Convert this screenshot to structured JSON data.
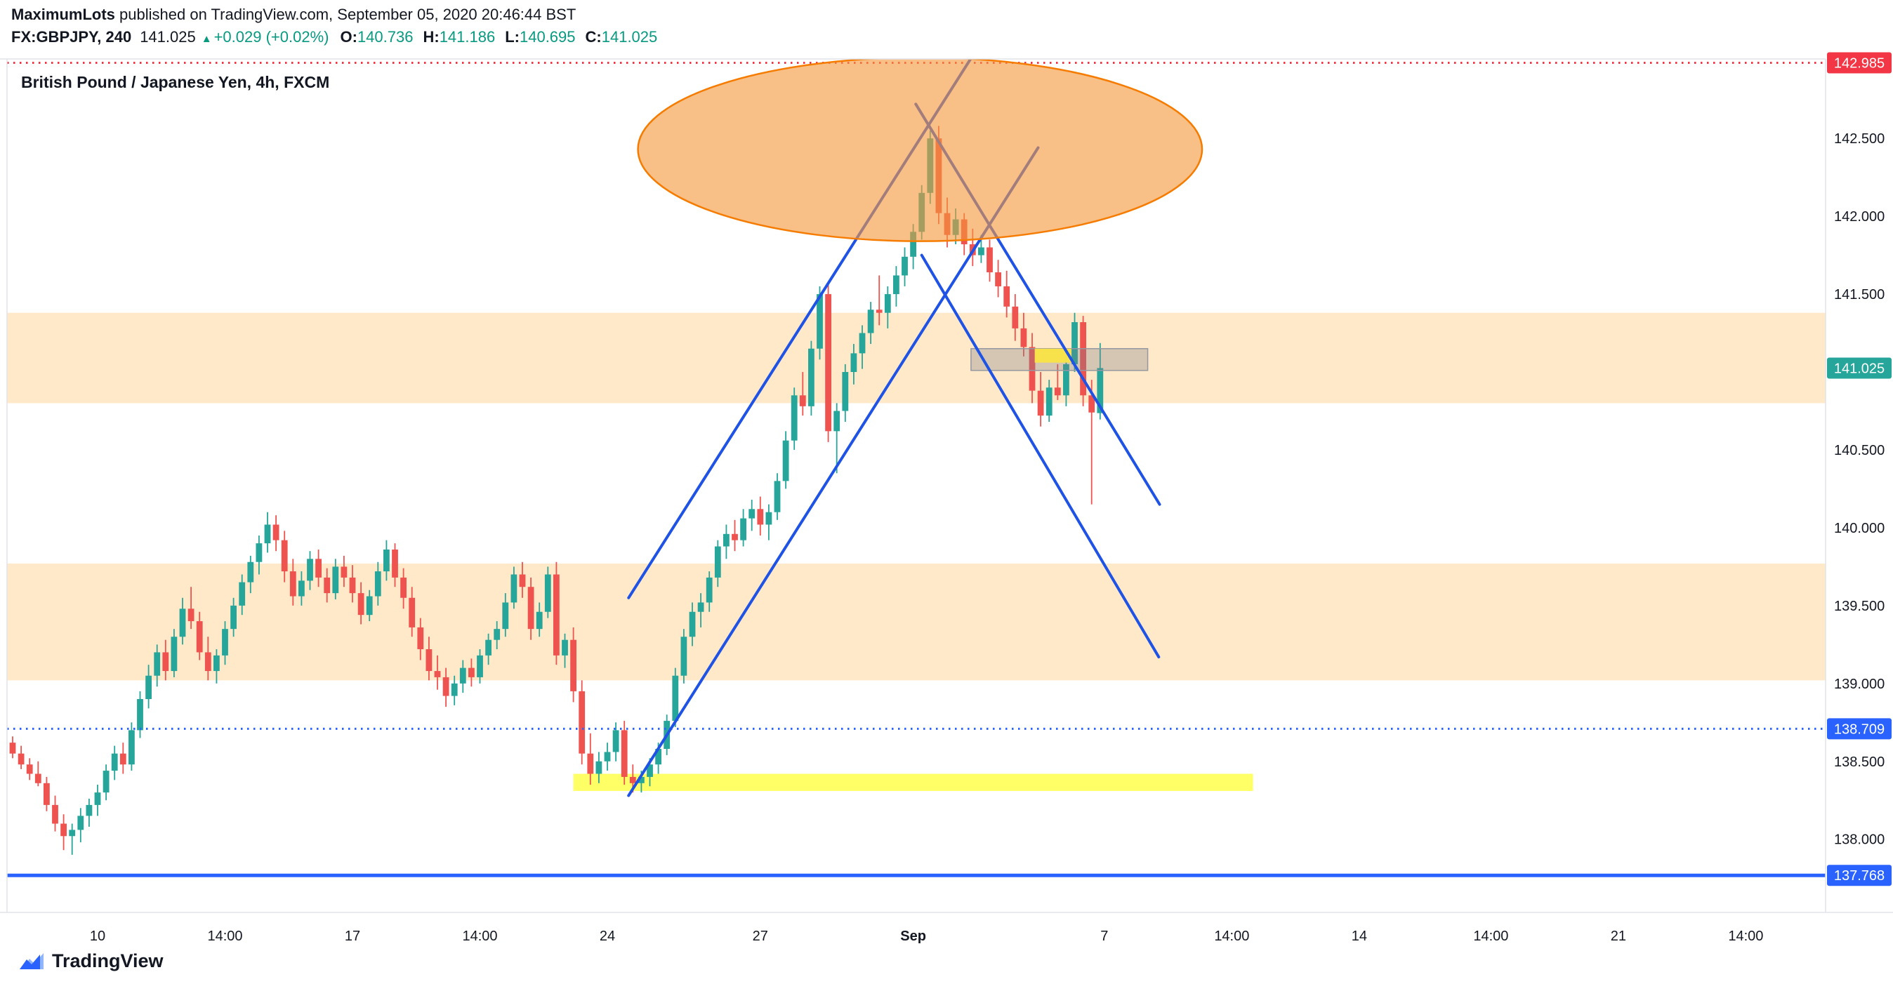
{
  "header": {
    "publisher": "MaximumLots",
    "published_text": " published on TradingView.com, September 05, 2020 20:46:44 BST"
  },
  "symbol_line": {
    "symbol": "FX:GBPJPY, 240",
    "price": "141.025",
    "direction_icon": "▲",
    "change": "+0.029 (+0.02%)",
    "ohlc": [
      {
        "label": "O:",
        "value": "140.736"
      },
      {
        "label": "H:",
        "value": "141.186"
      },
      {
        "label": "L:",
        "value": "140.695"
      },
      {
        "label": "C:",
        "value": "141.025"
      }
    ]
  },
  "chart_title": "British Pound / Japanese Yen, 4h, FXCM",
  "footer": {
    "brand": "TradingView"
  },
  "chart_data": {
    "type": "candlestick",
    "title": "British Pound / Japanese Yen, 4h, FXCM",
    "symbol": "FX:GBPJPY",
    "interval": "240",
    "exchange": "FXCM",
    "ylim": [
      137.53,
      143.01
    ],
    "colors": {
      "up": "#26a69a",
      "down": "#ef5350",
      "trendline": "#1e53e5",
      "band": "rgba(255,183,77,0.30)",
      "yellow_strip": "rgba(255,255,0,0.60)",
      "yellow_box": "rgba(250,228,70,0.95)",
      "gray_box_fill": "rgba(120,123,134,0.32)",
      "gray_box_stroke": "#9598a1",
      "ellipse_fill": "rgba(244,152,60,0.62)",
      "ellipse_stroke": "#f57c00",
      "axis_text": "#131722",
      "border": "#e0e3eb",
      "blue_level": "#2962ff",
      "red_level": "#f23645"
    },
    "price_ticks": [
      142.5,
      142.0,
      141.5,
      140.5,
      140.0,
      139.5,
      139.0,
      138.5,
      138.0
    ],
    "price_labels": [
      {
        "price": 142.985,
        "color": "#f23645"
      },
      {
        "price": 141.025,
        "color": "#26a69a"
      },
      {
        "price": 138.709,
        "color": "#2962ff"
      },
      {
        "price": 137.768,
        "color": "#2962ff"
      }
    ],
    "time_ticks": [
      {
        "label": "10",
        "i": 10
      },
      {
        "label": "14:00",
        "i": 25
      },
      {
        "label": "17",
        "i": 40
      },
      {
        "label": "14:00",
        "i": 55
      },
      {
        "label": "24",
        "i": 70
      },
      {
        "label": "27",
        "i": 88
      },
      {
        "label": "Sep",
        "i": 106,
        "bold": true
      },
      {
        "label": "7",
        "i": 128.5
      },
      {
        "label": "14:00",
        "i": 143.5
      },
      {
        "label": "14",
        "i": 158.5
      },
      {
        "label": "14:00",
        "i": 174
      },
      {
        "label": "21",
        "i": 189
      },
      {
        "label": "14:00",
        "i": 204
      }
    ],
    "annotations": {
      "bands": [
        {
          "p1": 141.38,
          "p2": 140.8
        },
        {
          "p1": 139.77,
          "p2": 139.02
        }
      ],
      "yellow_strip": {
        "i1": 66,
        "i2": 146,
        "p1": 138.42,
        "p2": 138.31
      },
      "gray_box": {
        "i1": 112.8,
        "i2": 133.6,
        "p1": 141.15,
        "p2": 141.01
      },
      "yellow_box": {
        "i1": 120.3,
        "i2": 124.6,
        "p1": 141.15,
        "p2": 141.06
      },
      "ellipse": {
        "i": 106.8,
        "p": 142.43,
        "ri": 33.2,
        "rp": 0.59
      },
      "trendlines": [
        {
          "i1": 72.5,
          "p1": 139.55,
          "i2": 113.1,
          "p2": 143.04
        },
        {
          "i1": 72.5,
          "p1": 138.28,
          "i2": 120.7,
          "p2": 142.44
        },
        {
          "i1": 106.3,
          "p1": 142.72,
          "i2": 135.0,
          "p2": 140.15
        },
        {
          "i1": 107.0,
          "p1": 141.75,
          "i2": 134.9,
          "p2": 139.17
        }
      ],
      "hlines": [
        {
          "price": 142.985,
          "style": "dotted",
          "color": "#f23645",
          "width": 3
        },
        {
          "price": 138.709,
          "style": "dotted",
          "color": "#2962ff",
          "width": 3
        },
        {
          "price": 137.768,
          "style": "solid",
          "color": "#2962ff",
          "width": 5
        }
      ]
    },
    "candles": [
      [
        138.62,
        138.66,
        138.52,
        138.55
      ],
      [
        138.55,
        138.6,
        138.45,
        138.48
      ],
      [
        138.48,
        138.52,
        138.38,
        138.42
      ],
      [
        138.42,
        138.5,
        138.34,
        138.36
      ],
      [
        138.36,
        138.4,
        138.18,
        138.22
      ],
      [
        138.22,
        138.28,
        138.05,
        138.1
      ],
      [
        138.1,
        138.16,
        137.93,
        138.02
      ],
      [
        138.02,
        138.1,
        137.9,
        138.06
      ],
      [
        138.06,
        138.2,
        137.98,
        138.15
      ],
      [
        138.15,
        138.26,
        138.08,
        138.22
      ],
      [
        138.22,
        138.35,
        138.15,
        138.3
      ],
      [
        138.3,
        138.48,
        138.25,
        138.44
      ],
      [
        138.44,
        138.6,
        138.38,
        138.55
      ],
      [
        138.55,
        138.62,
        138.42,
        138.48
      ],
      [
        138.48,
        138.75,
        138.44,
        138.7
      ],
      [
        138.7,
        138.95,
        138.65,
        138.9
      ],
      [
        138.9,
        139.12,
        138.84,
        139.05
      ],
      [
        139.05,
        139.25,
        138.98,
        139.2
      ],
      [
        139.2,
        139.28,
        139.02,
        139.08
      ],
      [
        139.08,
        139.35,
        139.04,
        139.3
      ],
      [
        139.3,
        139.55,
        139.25,
        139.48
      ],
      [
        139.48,
        139.62,
        139.35,
        139.4
      ],
      [
        139.4,
        139.46,
        139.15,
        139.2
      ],
      [
        139.2,
        139.3,
        139.02,
        139.08
      ],
      [
        139.08,
        139.22,
        139.0,
        139.18
      ],
      [
        139.18,
        139.4,
        139.12,
        139.35
      ],
      [
        139.35,
        139.55,
        139.3,
        139.5
      ],
      [
        139.5,
        139.7,
        139.44,
        139.65
      ],
      [
        139.65,
        139.82,
        139.58,
        139.78
      ],
      [
        139.78,
        139.95,
        139.7,
        139.9
      ],
      [
        139.9,
        140.1,
        139.84,
        140.02
      ],
      [
        140.02,
        140.08,
        139.85,
        139.92
      ],
      [
        139.92,
        139.98,
        139.65,
        139.72
      ],
      [
        139.72,
        139.8,
        139.5,
        139.56
      ],
      [
        139.56,
        139.72,
        139.5,
        139.66
      ],
      [
        139.66,
        139.85,
        139.6,
        139.8
      ],
      [
        139.8,
        139.86,
        139.62,
        139.68
      ],
      [
        139.68,
        139.74,
        139.52,
        139.58
      ],
      [
        139.58,
        139.8,
        139.54,
        139.75
      ],
      [
        139.75,
        139.82,
        139.62,
        139.68
      ],
      [
        139.68,
        139.76,
        139.52,
        139.58
      ],
      [
        139.58,
        139.65,
        139.38,
        139.44
      ],
      [
        139.44,
        139.6,
        139.4,
        139.56
      ],
      [
        139.56,
        139.78,
        139.5,
        139.72
      ],
      [
        139.72,
        139.92,
        139.66,
        139.86
      ],
      [
        139.86,
        139.9,
        139.62,
        139.68
      ],
      [
        139.68,
        139.74,
        139.48,
        139.55
      ],
      [
        139.55,
        139.62,
        139.3,
        139.36
      ],
      [
        139.36,
        139.42,
        139.15,
        139.22
      ],
      [
        139.22,
        139.3,
        139.02,
        139.08
      ],
      [
        139.08,
        139.18,
        138.96,
        139.04
      ],
      [
        139.04,
        139.1,
        138.85,
        138.92
      ],
      [
        138.92,
        139.05,
        138.86,
        139.0
      ],
      [
        139.0,
        139.15,
        138.94,
        139.1
      ],
      [
        139.1,
        139.16,
        138.98,
        139.04
      ],
      [
        139.04,
        139.22,
        139.0,
        139.18
      ],
      [
        139.18,
        139.32,
        139.12,
        139.28
      ],
      [
        139.28,
        139.4,
        139.22,
        139.35
      ],
      [
        139.35,
        139.58,
        139.3,
        139.52
      ],
      [
        139.52,
        139.75,
        139.48,
        139.7
      ],
      [
        139.7,
        139.78,
        139.55,
        139.62
      ],
      [
        139.62,
        139.68,
        139.28,
        139.35
      ],
      [
        139.35,
        139.52,
        139.3,
        139.46
      ],
      [
        139.46,
        139.75,
        139.42,
        139.7
      ],
      [
        139.7,
        139.78,
        139.12,
        139.18
      ],
      [
        139.18,
        139.32,
        139.1,
        139.28
      ],
      [
        139.28,
        139.36,
        138.88,
        138.95
      ],
      [
        138.95,
        139.02,
        138.48,
        138.55
      ],
      [
        138.55,
        138.68,
        138.35,
        138.42
      ],
      [
        138.42,
        138.56,
        138.36,
        138.5
      ],
      [
        138.5,
        138.62,
        138.44,
        138.56
      ],
      [
        138.56,
        138.75,
        138.5,
        138.7
      ],
      [
        138.7,
        138.76,
        138.35,
        138.4
      ],
      [
        138.4,
        138.48,
        138.3,
        138.36
      ],
      [
        138.36,
        138.44,
        138.3,
        138.4
      ],
      [
        138.4,
        138.52,
        138.34,
        138.48
      ],
      [
        138.48,
        138.62,
        138.42,
        138.58
      ],
      [
        138.58,
        138.8,
        138.54,
        138.76
      ],
      [
        138.76,
        139.1,
        138.72,
        139.05
      ],
      [
        139.05,
        139.35,
        139.0,
        139.3
      ],
      [
        139.3,
        139.52,
        139.24,
        139.46
      ],
      [
        139.46,
        139.58,
        139.36,
        139.52
      ],
      [
        139.52,
        139.72,
        139.46,
        139.68
      ],
      [
        139.68,
        139.92,
        139.62,
        139.88
      ],
      [
        139.88,
        140.02,
        139.8,
        139.96
      ],
      [
        139.96,
        140.05,
        139.85,
        139.92
      ],
      [
        139.92,
        140.12,
        139.88,
        140.06
      ],
      [
        140.06,
        140.18,
        139.98,
        140.12
      ],
      [
        140.12,
        140.2,
        139.95,
        140.02
      ],
      [
        140.02,
        140.15,
        139.92,
        140.1
      ],
      [
        140.1,
        140.35,
        140.05,
        140.3
      ],
      [
        140.3,
        140.62,
        140.25,
        140.56
      ],
      [
        140.56,
        140.9,
        140.5,
        140.85
      ],
      [
        140.85,
        141.0,
        140.72,
        140.78
      ],
      [
        140.78,
        141.2,
        140.72,
        141.15
      ],
      [
        141.15,
        141.55,
        141.08,
        141.5
      ],
      [
        141.5,
        141.56,
        140.55,
        140.62
      ],
      [
        140.62,
        140.8,
        140.35,
        140.75
      ],
      [
        140.75,
        141.05,
        140.68,
        141.0
      ],
      [
        141.0,
        141.18,
        140.92,
        141.12
      ],
      [
        141.12,
        141.3,
        141.02,
        141.25
      ],
      [
        141.25,
        141.45,
        141.18,
        141.4
      ],
      [
        141.4,
        141.62,
        141.3,
        141.38
      ],
      [
        141.38,
        141.55,
        141.28,
        141.5
      ],
      [
        141.5,
        141.68,
        141.42,
        141.62
      ],
      [
        141.62,
        141.8,
        141.55,
        141.74
      ],
      [
        141.74,
        141.95,
        141.66,
        141.9
      ],
      [
        141.9,
        142.2,
        141.85,
        142.15
      ],
      [
        142.15,
        142.55,
        142.08,
        142.5
      ],
      [
        142.5,
        142.58,
        141.95,
        142.02
      ],
      [
        142.02,
        142.12,
        141.8,
        141.88
      ],
      [
        141.88,
        142.05,
        141.82,
        141.98
      ],
      [
        141.98,
        142.02,
        141.75,
        141.82
      ],
      [
        141.82,
        141.92,
        141.68,
        141.75
      ],
      [
        141.75,
        141.88,
        141.7,
        141.8
      ],
      [
        141.8,
        141.85,
        141.58,
        141.64
      ],
      [
        141.64,
        141.72,
        141.48,
        141.55
      ],
      [
        141.55,
        141.65,
        141.35,
        141.42
      ],
      [
        141.42,
        141.5,
        141.2,
        141.28
      ],
      [
        141.28,
        141.38,
        141.1,
        141.16
      ],
      [
        141.16,
        141.25,
        140.8,
        140.88
      ],
      [
        140.88,
        141.0,
        140.65,
        140.72
      ],
      [
        140.72,
        140.95,
        140.68,
        140.9
      ],
      [
        140.9,
        141.05,
        140.82,
        140.85
      ],
      [
        140.85,
        141.1,
        140.78,
        141.05
      ],
      [
        141.05,
        141.38,
        141.0,
        141.32
      ],
      [
        141.32,
        141.36,
        140.78,
        140.85
      ],
      [
        140.85,
        140.95,
        140.15,
        140.74
      ],
      [
        140.736,
        141.186,
        140.695,
        141.025
      ]
    ]
  }
}
